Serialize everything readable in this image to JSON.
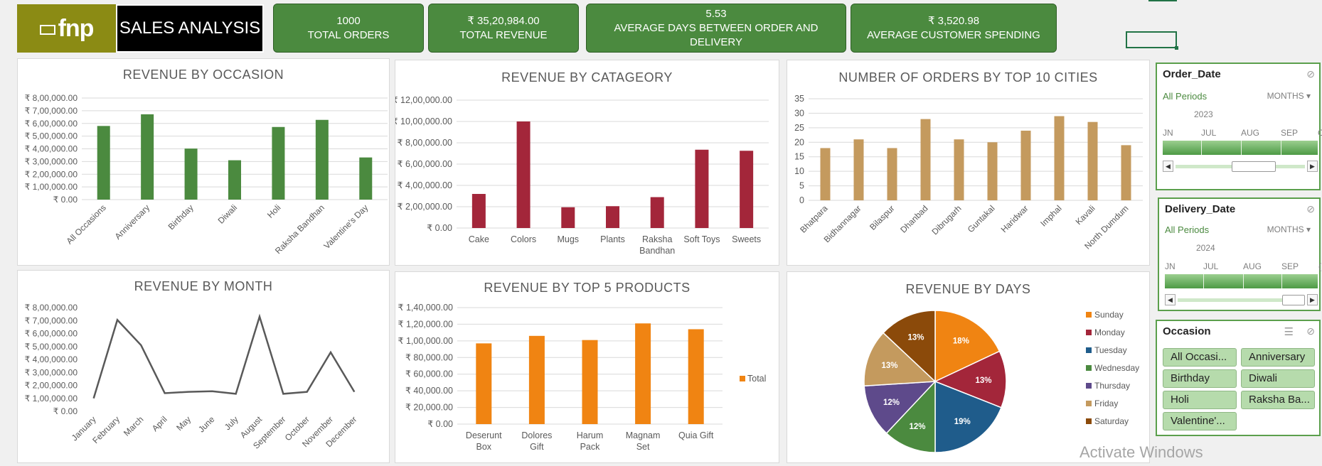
{
  "header": {
    "logo_text": "fnp",
    "title": "SALES ANALYSIS"
  },
  "kpis": [
    {
      "value": "1000",
      "label": "TOTAL ORDERS"
    },
    {
      "value": "₹ 35,20,984.00",
      "label": "TOTAL REVENUE"
    },
    {
      "value": "5.53",
      "label": "AVERAGE DAYS BETWEEN ORDER AND DELIVERY"
    },
    {
      "value": "₹ 3,520.98",
      "label": "AVERAGE CUSTOMER SPENDING"
    }
  ],
  "colors": {
    "kpi_bg": "#4b8a3f",
    "occasion_bar": "#4b8a3f",
    "category_bar": "#a3263a",
    "city_bar": "#c49a5e",
    "month_line": "#595959",
    "product_bar": "#f08412"
  },
  "chart_data": [
    {
      "id": "occasion",
      "type": "bar",
      "title": "REVENUE BY OCCASION",
      "categories": [
        "All Occasions",
        "Anniversary",
        "Birthday",
        "Diwali",
        "Holi",
        "Raksha Bandhan",
        "Valentine's Day"
      ],
      "values": [
        580000,
        672000,
        402000,
        310000,
        572000,
        628000,
        332000
      ],
      "ylim": [
        0,
        800000
      ],
      "yticks": [
        "₹ 0.00",
        "₹ 1,00,000.00",
        "₹ 2,00,000.00",
        "₹ 3,00,000.00",
        "₹ 4,00,000.00",
        "₹ 5,00,000.00",
        "₹ 6,00,000.00",
        "₹ 7,00,000.00",
        "₹ 8,00,000.00"
      ],
      "grid": true
    },
    {
      "id": "category",
      "type": "bar",
      "title": "REVENUE BY CATAGEORY",
      "categories": [
        "Cake",
        "Colors",
        "Mugs",
        "Plants",
        "Raksha Bandhan",
        "Soft Toys",
        "Sweets"
      ],
      "values": [
        320000,
        1000000,
        195000,
        205000,
        290000,
        735000,
        725000
      ],
      "ylim": [
        0,
        1200000
      ],
      "yticks": [
        "₹ 0.00",
        "₹ 2,00,000.00",
        "₹ 4,00,000.00",
        "₹ 6,00,000.00",
        "₹ 8,00,000.00",
        "₹ 10,00,000.00",
        "₹ 12,00,000.00"
      ],
      "grid": true
    },
    {
      "id": "cities",
      "type": "bar",
      "title": "NUMBER OF ORDERS BY TOP 10 CITIES",
      "categories": [
        "Bhatpara",
        "Bidhannagar",
        "Bilaspur",
        "Dhanbad",
        "Dibrugarh",
        "Guntakal",
        "Haridwar",
        "Imphal",
        "Kavali",
        "North Dumdum"
      ],
      "values": [
        18,
        21,
        18,
        28,
        21,
        20,
        24,
        29,
        27,
        19
      ],
      "ylim": [
        0,
        35
      ],
      "yticks": [
        "0",
        "5",
        "10",
        "15",
        "20",
        "25",
        "30",
        "35"
      ],
      "grid": true
    },
    {
      "id": "month",
      "type": "line",
      "title": "REVENUE BY MONTH",
      "categories": [
        "January",
        "February",
        "March",
        "April",
        "May",
        "June",
        "July",
        "August",
        "September",
        "October",
        "November",
        "December"
      ],
      "values": [
        100000,
        705000,
        510000,
        140000,
        150000,
        155000,
        135000,
        730000,
        135000,
        150000,
        455000,
        150000
      ],
      "ylim": [
        0,
        800000
      ],
      "yticks": [
        "₹ 0.00",
        "₹ 1,00,000.00",
        "₹ 2,00,000.00",
        "₹ 3,00,000.00",
        "₹ 4,00,000.00",
        "₹ 5,00,000.00",
        "₹ 6,00,000.00",
        "₹ 7,00,000.00",
        "₹ 8,00,000.00"
      ],
      "grid": false
    },
    {
      "id": "products",
      "type": "bar",
      "title": "REVENUE BY TOP 5 PRODUCTS",
      "categories": [
        "Deserunt Box",
        "Dolores Gift",
        "Harum Pack",
        "Magnam Set",
        "Quia Gift"
      ],
      "values": [
        97000,
        106000,
        101000,
        121000,
        114000
      ],
      "ylim": [
        0,
        140000
      ],
      "yticks": [
        "₹ 0.00",
        "₹ 20,000.00",
        "₹ 40,000.00",
        "₹ 60,000.00",
        "₹ 80,000.00",
        "₹ 1,00,000.00",
        "₹ 1,20,000.00",
        "₹ 1,40,000.00"
      ],
      "legend": [
        "Total"
      ],
      "legend_position": "right",
      "grid": true
    },
    {
      "id": "days",
      "type": "pie",
      "title": "REVENUE BY DAYS",
      "categories": [
        "Sunday",
        "Monday",
        "Tuesday",
        "Wednesday",
        "Thursday",
        "Friday",
        "Saturday"
      ],
      "values": [
        18,
        13,
        19,
        12,
        12,
        13,
        13
      ],
      "labels": [
        "18%",
        "13%",
        "19%",
        "12%",
        "12%",
        "13%",
        "13%"
      ],
      "colors": [
        "#f08412",
        "#a3263a",
        "#1f5c8b",
        "#4b8a3f",
        "#5e4a8b",
        "#c49a5e",
        "#8b4a0a"
      ],
      "legend_position": "right"
    }
  ],
  "slicers": {
    "order_date": {
      "title": "Order_Date",
      "all_periods": "All Periods",
      "level": "MONTHS",
      "year": "2023",
      "months": [
        "JN",
        "JUL",
        "AUG",
        "SEP",
        "C"
      ]
    },
    "delivery_date": {
      "title": "Delivery_Date",
      "all_periods": "All Periods",
      "level": "MONTHS",
      "year": "2024",
      "months": [
        "JN",
        "JUL",
        "AUG",
        "SEP",
        "("
      ]
    },
    "occasion": {
      "title": "Occasion",
      "items": [
        "All Occasi...",
        "Anniversary",
        "Birthday",
        "Diwali",
        "Holi",
        "Raksha Ba...",
        "Valentine'..."
      ]
    }
  },
  "watermark": "Activate Windows"
}
